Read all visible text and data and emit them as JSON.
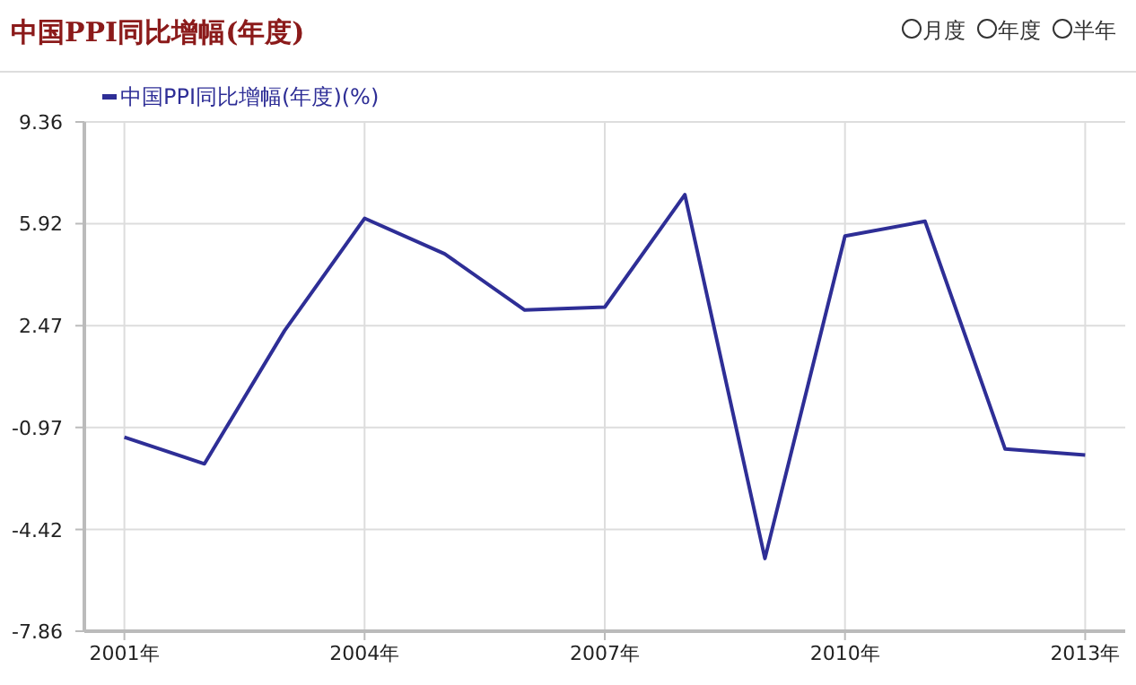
{
  "chart_data": {
    "type": "line",
    "title": "中国PPI同比增幅(年度)",
    "annotations": [
      "月度",
      "年度",
      "半年"
    ],
    "x": [
      2001,
      2002,
      2003,
      2004,
      2005,
      2006,
      2007,
      2008,
      2009,
      2010,
      2011,
      2012,
      2013
    ],
    "series": [
      {
        "name": "中国PPI同比增幅(年度)(%)",
        "color": "#2e2e96",
        "values": [
          -1.3,
          -2.2,
          2.3,
          6.1,
          4.9,
          3.0,
          3.1,
          6.9,
          -5.4,
          5.5,
          6.0,
          -1.7,
          -1.9
        ]
      }
    ],
    "xlim": [
      2000.5,
      2013.5
    ],
    "xticks": [
      {
        "value": 2001,
        "label": "2001年"
      },
      {
        "value": 2004,
        "label": "2004年"
      },
      {
        "value": 2007,
        "label": "2007年"
      },
      {
        "value": 2010,
        "label": "2010年"
      },
      {
        "value": 2013,
        "label": "2013年"
      }
    ],
    "ylim": [
      -7.86,
      9.36
    ],
    "yticks": [
      -7.86,
      -4.42,
      -0.97,
      2.47,
      5.92,
      9.36
    ],
    "grid": true,
    "legend": "top left",
    "marker": "none",
    "line_style": "solid"
  }
}
